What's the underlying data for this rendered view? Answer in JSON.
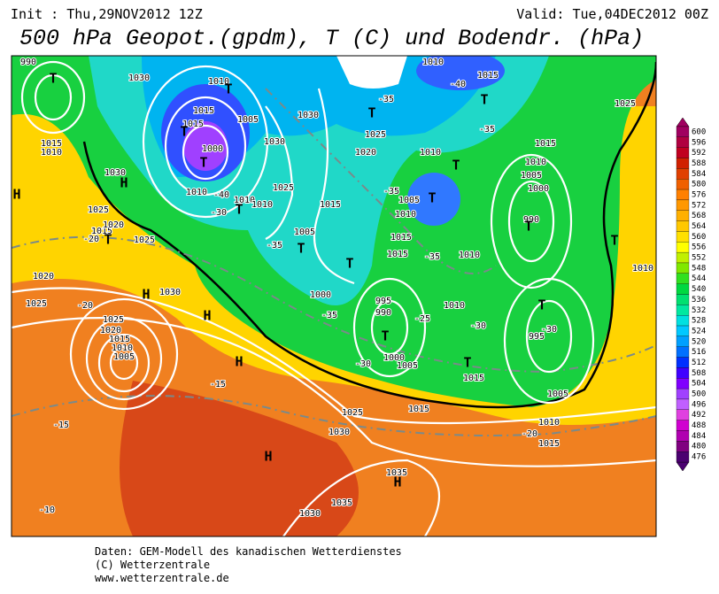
{
  "header": {
    "init": "Init : Thu,29NOV2012 12Z",
    "valid": "Valid: Tue,04DEC2012 00Z",
    "title": "500 hPa Geopot.(gpdm), T (C) und Bodendr. (hPa)"
  },
  "footer": [
    "Daten: GEM-Modell des kanadischen Wetterdienstes",
    "(C) Wetterzentrale",
    "www.wetterzentrale.de"
  ],
  "colorbar": {
    "values": [
      600,
      596,
      592,
      588,
      584,
      580,
      576,
      572,
      568,
      564,
      560,
      556,
      552,
      548,
      544,
      540,
      536,
      532,
      528,
      524,
      520,
      516,
      512,
      508,
      504,
      500,
      496,
      492,
      488,
      484,
      480,
      476
    ],
    "colors": [
      "#a00060",
      "#b00040",
      "#c00020",
      "#d02000",
      "#e04000",
      "#f06000",
      "#ff8000",
      "#ff9800",
      "#ffb000",
      "#ffc800",
      "#ffe000",
      "#ffff00",
      "#c0f000",
      "#80e800",
      "#30e020",
      "#00d840",
      "#00e070",
      "#00e8a0",
      "#00e0e0",
      "#00c8ff",
      "#00a0ff",
      "#0070ff",
      "#0030ff",
      "#4000ff",
      "#8000ff",
      "#a040ff",
      "#c060ff",
      "#e040e0",
      "#d000d0",
      "#b000b0",
      "#800080",
      "#4b0070"
    ]
  },
  "map": {
    "labels": [
      "1030",
      "1010",
      "1015",
      "1015",
      "1000",
      "1010",
      "-40",
      "-30",
      "1005",
      "1030",
      "1030",
      "1025",
      "1020",
      "1025",
      "1015",
      "1005",
      "-35",
      "1010",
      "1005",
      "1010",
      "1015",
      "1015",
      "-35",
      "1010",
      "1000",
      "995",
      "990",
      "1010",
      "-30",
      "1000",
      "1005",
      "1015",
      "1025",
      "1015",
      "1030",
      "1035",
      "1035",
      "1030",
      "1010",
      "1015",
      "-20",
      "1005",
      "995",
      "-30",
      "1010",
      "1005",
      "1000",
      "990",
      "1015",
      "1025",
      "1010",
      "1025",
      "1020",
      "1025",
      "1030",
      "1025",
      "1020",
      "1015",
      "1010",
      "1005",
      "-20",
      "-20",
      "-15",
      "-15",
      "-10",
      "1015",
      "1010",
      "1030",
      "1025",
      "1015",
      "1020",
      "990",
      "1010",
      "1015",
      "-40",
      "-35",
      "-35",
      "-35",
      "-25",
      "-35",
      "-30",
      "1010",
      "1010"
    ],
    "symbols": [
      "T",
      "T",
      "T",
      "T",
      "T",
      "T",
      "T",
      "T",
      "T",
      "T",
      "T",
      "T",
      "T",
      "T",
      "T",
      "H",
      "H",
      "H",
      "H",
      "H",
      "H",
      "H",
      "T",
      "T"
    ]
  }
}
